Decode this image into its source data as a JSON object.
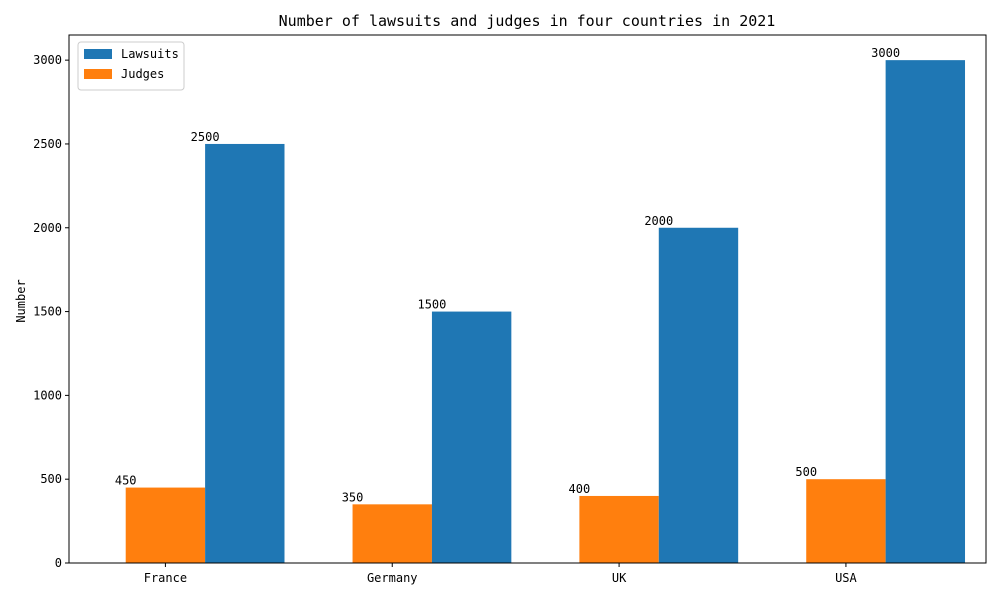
{
  "chart_data": {
    "type": "bar",
    "title": "Number of lawsuits and judges in four countries in 2021",
    "xlabel": "",
    "ylabel": "Number",
    "categories": [
      "France",
      "Germany",
      "UK",
      "USA"
    ],
    "series": [
      {
        "name": "Judges",
        "values": [
          450,
          350,
          400,
          500
        ],
        "color": "#ff7f0e"
      },
      {
        "name": "Lawsuits",
        "values": [
          2500,
          1500,
          2000,
          3000
        ],
        "color": "#1f77b4"
      }
    ],
    "legend_order": [
      "Lawsuits",
      "Judges"
    ],
    "ylim": [
      0,
      3150
    ],
    "yticks": [
      0,
      500,
      1000,
      1500,
      2000,
      2500,
      3000
    ],
    "grid": false,
    "legend_position": "top-left"
  }
}
